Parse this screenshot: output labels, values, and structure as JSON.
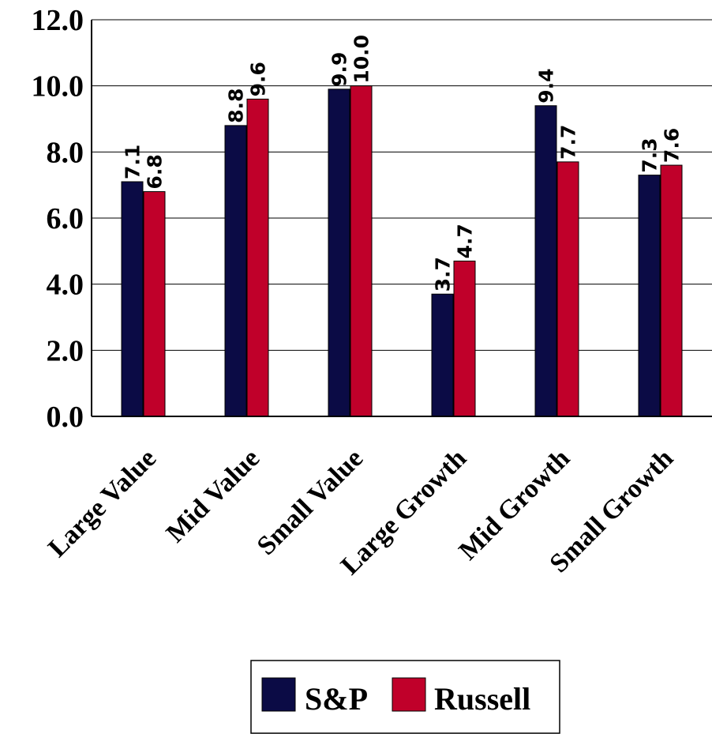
{
  "chart_data": {
    "type": "bar",
    "title": "",
    "xlabel": "",
    "ylabel": "",
    "ylim": [
      0,
      12
    ],
    "y_ticks": [
      "0.0",
      "2.0",
      "4.0",
      "6.0",
      "8.0",
      "10.0",
      "12.0"
    ],
    "categories": [
      "Large Value",
      "Mid Value",
      "Small Value",
      "Large Growth",
      "Mid Growth",
      "Small Growth"
    ],
    "series": [
      {
        "name": "S&P",
        "color": "#0b0b45",
        "values": [
          7.1,
          8.8,
          9.9,
          3.7,
          9.4,
          7.3
        ],
        "labels": [
          "7.1",
          "8.8",
          "9.9",
          "3.7",
          "9.4",
          "7.3"
        ]
      },
      {
        "name": "Russell",
        "color": "#c0002a",
        "values": [
          6.8,
          9.6,
          10.0,
          4.7,
          7.7,
          7.6
        ],
        "labels": [
          "6.8",
          "9.6",
          "10.0",
          "4.7",
          "7.7",
          "7.6"
        ]
      }
    ],
    "grid": true,
    "legend": "bottom"
  }
}
